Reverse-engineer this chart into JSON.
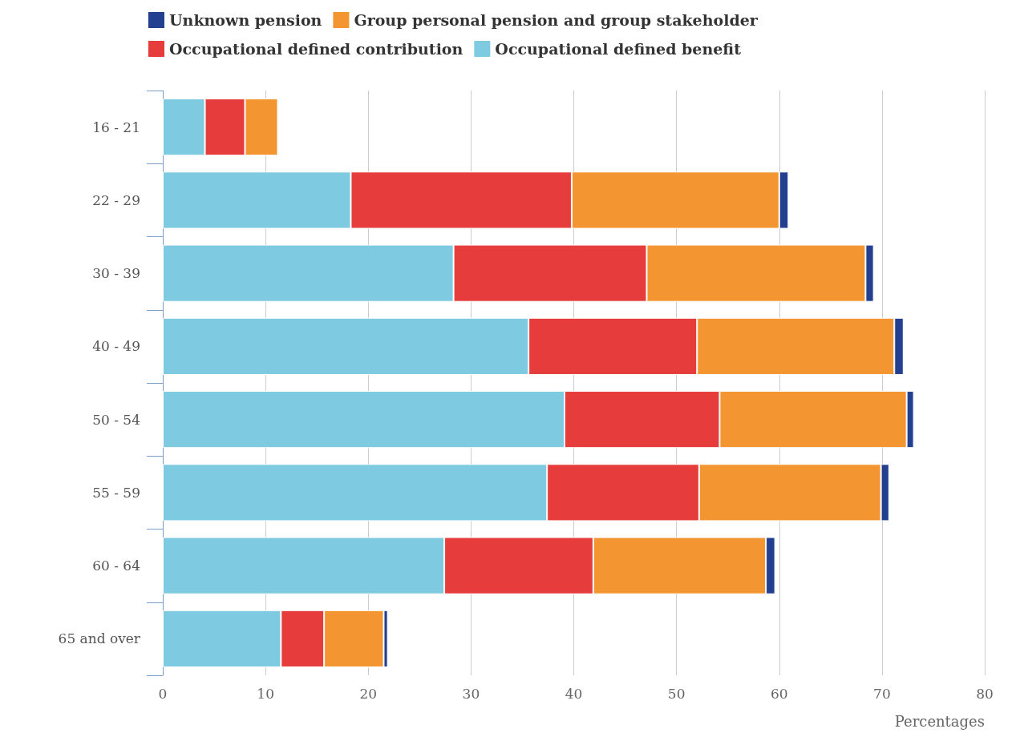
{
  "chart_data": {
    "type": "bar",
    "orientation": "horizontal",
    "stacked": true,
    "xlabel": "Percentages",
    "categories": [
      "16 - 21",
      "22 - 29",
      "30 - 39",
      "40 - 49",
      "50 - 54",
      "55 - 59",
      "60 - 64",
      "65 and over"
    ],
    "series": [
      {
        "name": "Occupational defined benefit",
        "color": "#7ecae1",
        "values": [
          4.1,
          18.3,
          28.3,
          35.6,
          39.1,
          37.4,
          27.4,
          11.5
        ]
      },
      {
        "name": "Occupational defined contribution",
        "color": "#e63c3c",
        "values": [
          3.9,
          21.5,
          18.8,
          16.4,
          15.1,
          14.8,
          14.5,
          4.2
        ]
      },
      {
        "name": "Group personal pension and group stakeholder",
        "color": "#f39530",
        "values": [
          3.2,
          20.2,
          21.3,
          19.2,
          18.2,
          17.7,
          16.8,
          5.8
        ]
      },
      {
        "name": "Unknown pension",
        "color": "#233f8f",
        "values": [
          null,
          0.9,
          0.8,
          0.9,
          0.7,
          0.8,
          0.9,
          0.4
        ]
      }
    ],
    "xlim": [
      0,
      80
    ],
    "xticks": [
      0,
      10,
      20,
      30,
      40,
      50,
      60,
      70,
      80
    ],
    "grid": "x",
    "legend": "top"
  }
}
